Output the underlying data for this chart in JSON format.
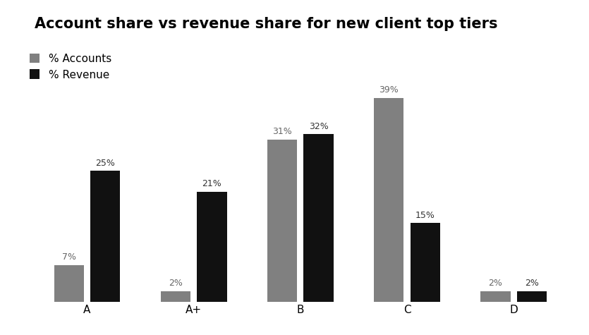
{
  "title": "Account share vs revenue share for new client top tiers",
  "categories": [
    "A",
    "A+",
    "B",
    "C",
    "D"
  ],
  "accounts": [
    7,
    2,
    31,
    39,
    2
  ],
  "revenue": [
    25,
    21,
    32,
    15,
    2
  ],
  "accounts_color": "#808080",
  "revenue_color": "#111111",
  "accounts_label": "% Accounts",
  "revenue_label": "% Revenue",
  "background_color": "#ffffff",
  "title_fontsize": 15,
  "label_fontsize": 9,
  "tick_fontsize": 11,
  "bar_width": 0.28,
  "bar_gap": 0.06,
  "ylim": [
    0,
    50
  ]
}
